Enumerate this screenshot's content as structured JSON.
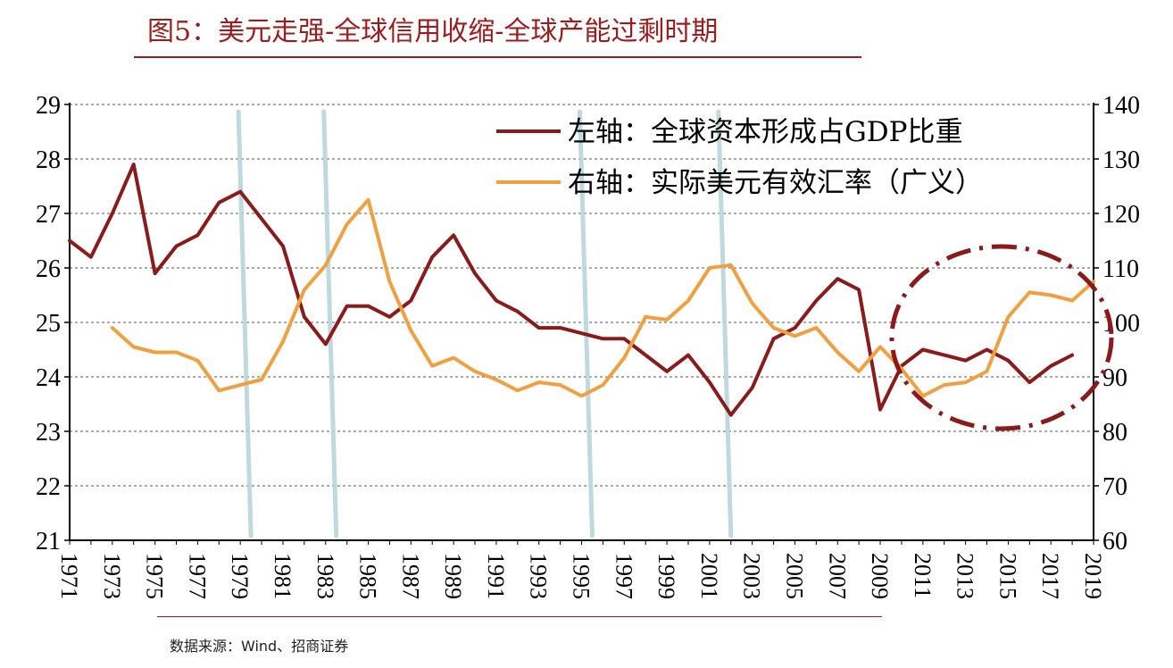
{
  "title": "图5：美元走强-全球信用收缩-全球产能过剩时期",
  "source": "数据来源：Wind、招商证券",
  "colors": {
    "left_series": "#8b1a1a",
    "right_series": "#f0a040",
    "recession_bars": "#b7d6dc",
    "title": "#9b1c1c"
  },
  "chart_data": {
    "type": "line",
    "x": [
      1971,
      1972,
      1973,
      1974,
      1975,
      1976,
      1977,
      1978,
      1979,
      1980,
      1981,
      1982,
      1983,
      1984,
      1985,
      1986,
      1987,
      1988,
      1989,
      1990,
      1991,
      1992,
      1993,
      1994,
      1995,
      1996,
      1997,
      1998,
      1999,
      2000,
      2001,
      2002,
      2003,
      2004,
      2005,
      2006,
      2007,
      2008,
      2009,
      2010,
      2011,
      2012,
      2013,
      2014,
      2015,
      2016,
      2017,
      2018,
      2019
    ],
    "x_tick_labels": [
      "1971",
      "1973",
      "1975",
      "1977",
      "1979",
      "1981",
      "1983",
      "1985",
      "1987",
      "1989",
      "1991",
      "1993",
      "1995",
      "1997",
      "1999",
      "2001",
      "2003",
      "2005",
      "2007",
      "2009",
      "2011",
      "2013",
      "2015",
      "2017",
      "2019"
    ],
    "left_axis": {
      "ylim": [
        21,
        29
      ],
      "ticks": [
        "21",
        "22",
        "23",
        "24",
        "25",
        "26",
        "27",
        "28",
        "29"
      ]
    },
    "right_axis": {
      "ylim": [
        60,
        140
      ],
      "ticks": [
        "60",
        "70",
        "80",
        "90",
        "100",
        "110",
        "120",
        "130",
        "140"
      ]
    },
    "grid": true,
    "legend_position": "top-right",
    "series": [
      {
        "name": "左轴：全球资本形成占GDP比重",
        "axis": "left",
        "x": [
          1971,
          1972,
          1973,
          1974,
          1975,
          1976,
          1977,
          1978,
          1979,
          1980,
          1981,
          1982,
          1983,
          1984,
          1985,
          1986,
          1987,
          1988,
          1989,
          1990,
          1991,
          1992,
          1993,
          1994,
          1995,
          1996,
          1997,
          1998,
          1999,
          2000,
          2001,
          2002,
          2003,
          2004,
          2005,
          2006,
          2007,
          2008,
          2009,
          2010,
          2011,
          2012,
          2013,
          2014,
          2015,
          2016,
          2017,
          2018
        ],
        "values": [
          26.5,
          26.2,
          27.0,
          27.9,
          25.9,
          26.4,
          26.6,
          27.2,
          27.4,
          26.9,
          26.4,
          25.1,
          24.6,
          25.3,
          25.3,
          25.1,
          25.4,
          26.2,
          26.6,
          25.9,
          25.4,
          25.2,
          24.9,
          24.9,
          24.8,
          24.7,
          24.7,
          24.4,
          24.1,
          24.4,
          23.9,
          23.3,
          23.8,
          24.7,
          24.9,
          25.4,
          25.8,
          25.6,
          23.4,
          24.2,
          24.5,
          24.4,
          24.3,
          24.5,
          24.3,
          23.9,
          24.2,
          24.4
        ]
      },
      {
        "name": "右轴：实际美元有效汇率（广义）",
        "axis": "right",
        "x": [
          1973,
          1974,
          1975,
          1976,
          1977,
          1978,
          1979,
          1980,
          1981,
          1982,
          1983,
          1984,
          1985,
          1986,
          1987,
          1988,
          1989,
          1990,
          1991,
          1992,
          1993,
          1994,
          1995,
          1996,
          1997,
          1998,
          1999,
          2000,
          2001,
          2002,
          2003,
          2004,
          2005,
          2006,
          2007,
          2008,
          2009,
          2010,
          2011,
          2012,
          2013,
          2014,
          2015,
          2016,
          2017,
          2018,
          2019
        ],
        "values": [
          99,
          95.5,
          94.5,
          94.5,
          93,
          87.5,
          88.5,
          89.5,
          96.5,
          106,
          110.5,
          118,
          122.5,
          107.5,
          98.5,
          92,
          93.5,
          91,
          89.5,
          87.5,
          89,
          88.5,
          86.5,
          88.5,
          93.5,
          101,
          100.5,
          104,
          110,
          110.5,
          103.5,
          99,
          97.5,
          99,
          94.5,
          91,
          95.5,
          91.5,
          86.5,
          88.5,
          89,
          91,
          101,
          105.5,
          105,
          104,
          107.5
        ]
      }
    ],
    "recession_periods": [
      1979.5,
      1983.5,
      1995.5,
      2002
    ]
  }
}
